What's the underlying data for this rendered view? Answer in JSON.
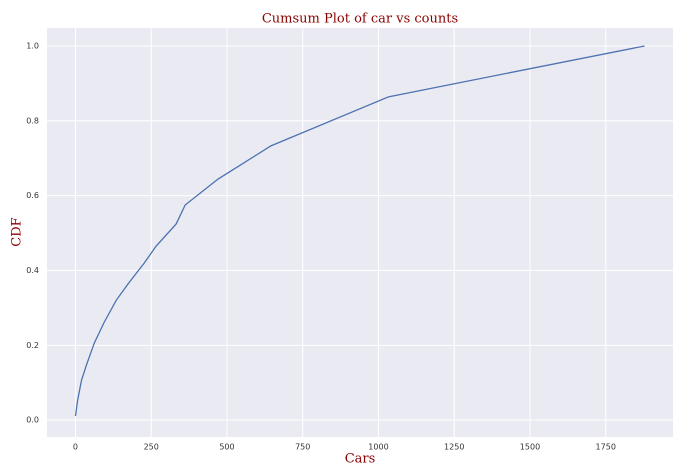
{
  "chart_data": {
    "type": "line",
    "title": "Cumsum Plot of car vs counts",
    "x_label": "Cars",
    "y_label": "CDF",
    "x": [
      0,
      7,
      20,
      36,
      62,
      95,
      135,
      178,
      227,
      266,
      332,
      362,
      470,
      645,
      1033,
      1878
    ],
    "series": [
      {
        "name": "CDF",
        "color": "#4c72b0",
        "values": [
          0.011,
          0.053,
          0.107,
          0.147,
          0.206,
          0.262,
          0.321,
          0.369,
          0.42,
          0.465,
          0.524,
          0.575,
          0.644,
          0.733,
          0.864,
          1.0
        ]
      }
    ],
    "xlim": [
      -94,
      1972
    ],
    "ylim": [
      -0.045,
      1.048
    ],
    "xticks": [
      0,
      250,
      500,
      750,
      1000,
      1250,
      1500,
      1750
    ],
    "yticks": [
      {
        "value": 0,
        "label": "0.0"
      },
      {
        "value": 0.2,
        "label": "0.2"
      },
      {
        "value": 0.4,
        "label": "0.4"
      },
      {
        "value": 0.6,
        "label": "0.6"
      },
      {
        "value": 0.8,
        "label": "0.8"
      },
      {
        "value": 1,
        "label": "1.0"
      }
    ],
    "grid": true
  }
}
